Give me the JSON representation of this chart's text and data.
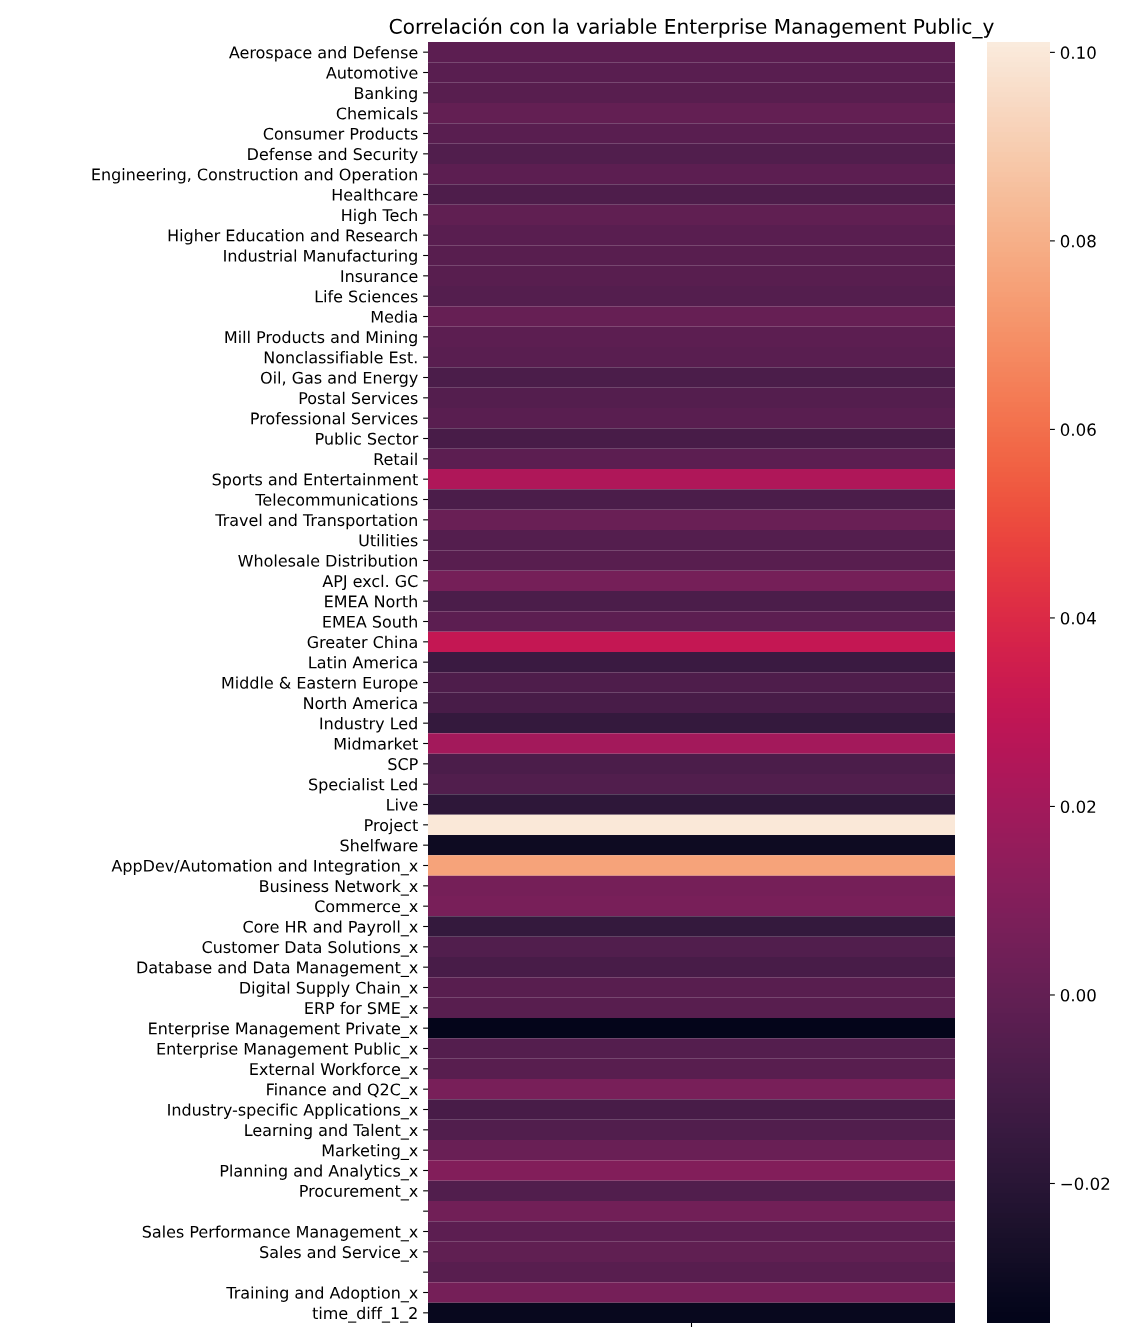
{
  "chart_data": {
    "type": "heatmap",
    "title": "Correlación con la variable Enterprise Management Public_y",
    "categories": [
      null
    ],
    "y_categories": [
      "Aerospace and Defense",
      "Automotive",
      "Banking",
      "Chemicals",
      "Consumer Products",
      "Defense and Security",
      "Engineering, Construction and Operation",
      "Healthcare",
      "High Tech",
      "Higher Education and Research",
      "Industrial Manufacturing",
      "Insurance",
      "Life Sciences",
      "Media",
      "Mill Products and Mining",
      "Nonclassifiable Est.",
      "Oil, Gas and Energy",
      "Postal Services",
      "Professional Services",
      "Public Sector",
      "Retail",
      "Sports and Entertainment",
      "Telecommunications",
      "Travel and Transportation",
      "Utilities",
      "Wholesale Distribution",
      "APJ excl. GC",
      "EMEA North",
      "EMEA South",
      "Greater China",
      "Latin America",
      "Middle & Eastern Europe",
      "North America",
      "Industry Led",
      "Midmarket",
      "SCP",
      "Specialist Led",
      "Live",
      "Project",
      "Shelfware",
      "AppDev/Automation and Integration_x",
      "Business Network_x",
      "Commerce_x",
      "Core HR and Payroll_x",
      "Customer Data Solutions_x",
      "Database and Data Management_x",
      "Digital Supply Chain_x",
      "ERP for SME_x",
      "Enterprise Management Private_x",
      "Enterprise Management Public_x",
      "External Workforce_x",
      "Finance and Q2C_x",
      "Industry-specific Applications_x",
      "Learning and Talent_x",
      "Marketing_x",
      "Planning and Analytics_x",
      "Procurement_x",
      null,
      "Sales Performance Management_x",
      "Sales and Service_x",
      null,
      "Training and Adoption_x",
      "time_diff_1_2"
    ],
    "cells": [
      [
        -0.002
      ],
      [
        -0.003
      ],
      [
        -0.004
      ],
      [
        0.0
      ],
      [
        -0.003
      ],
      [
        -0.006
      ],
      [
        -0.002
      ],
      [
        -0.007
      ],
      [
        -0.001
      ],
      [
        -0.003
      ],
      [
        -0.004
      ],
      [
        -0.004
      ],
      [
        -0.005
      ],
      [
        0.001
      ],
      [
        -0.002
      ],
      [
        -0.003
      ],
      [
        -0.008
      ],
      [
        -0.005
      ],
      [
        -0.003
      ],
      [
        -0.009
      ],
      [
        -0.002
      ],
      [
        0.024
      ],
      [
        -0.008
      ],
      [
        0.002
      ],
      [
        -0.005
      ],
      [
        -0.004
      ],
      [
        0.006
      ],
      [
        -0.008
      ],
      [
        -0.002
      ],
      [
        0.031
      ],
      [
        -0.014
      ],
      [
        -0.007
      ],
      [
        -0.009
      ],
      [
        -0.016
      ],
      [
        0.02
      ],
      [
        -0.008
      ],
      [
        -0.006
      ],
      [
        -0.018
      ],
      [
        0.1
      ],
      [
        -0.03
      ],
      [
        0.076
      ],
      [
        0.006
      ],
      [
        0.007
      ],
      [
        -0.016
      ],
      [
        -0.006
      ],
      [
        -0.009
      ],
      [
        -0.004
      ],
      [
        -0.004
      ],
      [
        -0.034
      ],
      [
        -0.005
      ],
      [
        -0.004
      ],
      [
        0.007
      ],
      [
        -0.009
      ],
      [
        -0.006
      ],
      [
        0.002
      ],
      [
        0.01
      ],
      [
        -0.006
      ],
      [
        0.005
      ],
      [
        -0.002
      ],
      [
        -0.001
      ],
      [
        -0.004
      ],
      [
        0.006
      ],
      [
        -0.032
      ]
    ],
    "clim": [
      -0.0348,
      0.1011
    ],
    "cticks": [
      {
        "value": -0.02,
        "label": "−0.02"
      },
      {
        "value": 0.0,
        "label": "0.00"
      },
      {
        "value": 0.02,
        "label": "0.02"
      },
      {
        "value": 0.04,
        "label": "0.04"
      },
      {
        "value": 0.06,
        "label": "0.06"
      },
      {
        "value": 0.08,
        "label": "0.08"
      },
      {
        "value": 0.1,
        "label": "0.10"
      }
    ]
  }
}
